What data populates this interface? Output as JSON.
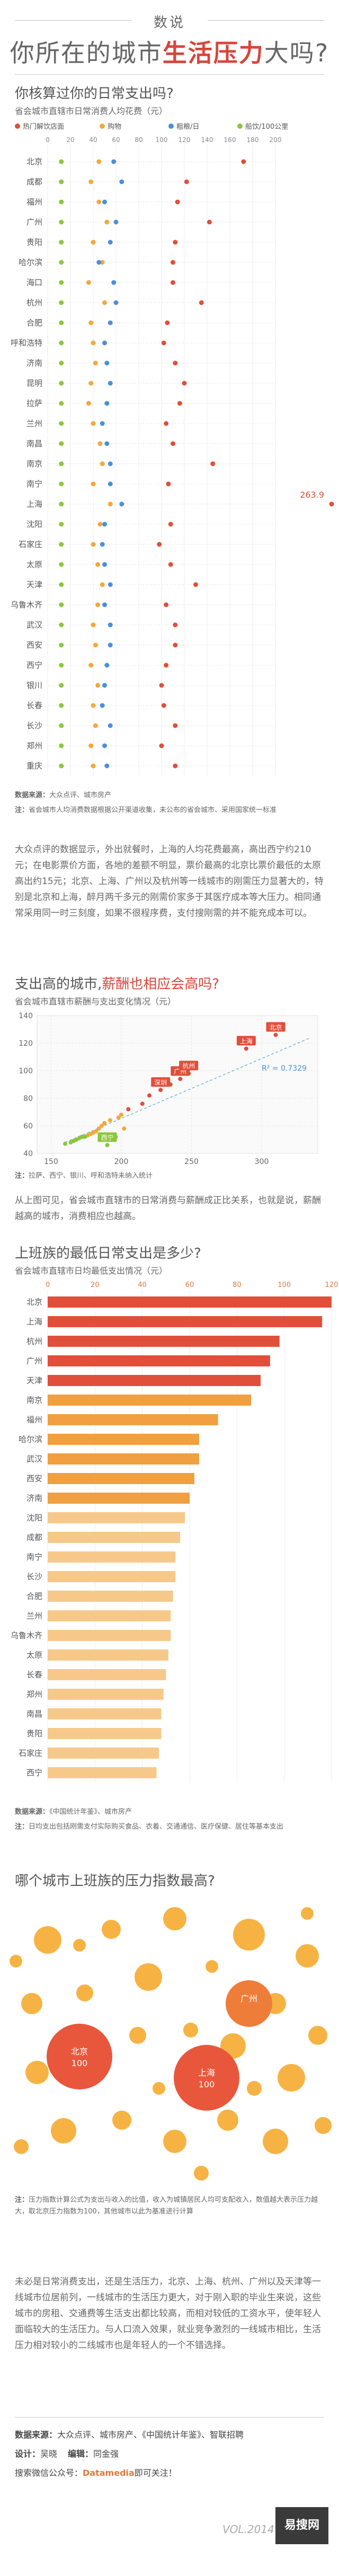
{
  "header": {
    "tag": "数说",
    "title_pre": "你所在的城市",
    "title_hl": "生活压力",
    "title_post": "大吗?"
  },
  "section1": {
    "title": "你核算过你的日常支出吗?",
    "subtitle": "省会城市直辖市日常消费人均花费（元）",
    "legend": [
      "热门解饮店面",
      "购物",
      "粗粮/日",
      "船饮/100公里"
    ],
    "source_label": "数据来源：",
    "source_text": "大众点评、城市房产",
    "note_label": "注：",
    "note_text": "省会城市人均消费数据根据公开渠道收集，未公布的省会城市、采用国家统一标准",
    "max_label": "263.9"
  },
  "chart_data": [
    {
      "type": "scatter",
      "title": "",
      "categories": [
        "北京",
        "成都",
        "福州",
        "广州",
        "贵阳",
        "哈尔滨",
        "海口",
        "杭州",
        "合肥",
        "呼和浩特",
        "济南",
        "昆明",
        "拉萨",
        "兰州",
        "南昌",
        "南京",
        "南宁",
        "上海",
        "沈阳",
        "石家庄",
        "太原",
        "天津",
        "乌鲁木齐",
        "武汉",
        "西安",
        "西宁",
        "银川",
        "长春",
        "长沙",
        "郑州",
        "重庆"
      ],
      "xlim": [
        0,
        280
      ],
      "xticks": [
        0,
        20,
        40,
        60,
        80,
        100,
        120,
        140,
        160,
        180,
        200
      ],
      "series": [
        {
          "name": "热门解饮店面",
          "color": "#e04f3a",
          "values": [
            172,
            122,
            114,
            142,
            112,
            110,
            110,
            135,
            105,
            102,
            112,
            120,
            116,
            104,
            110,
            145,
            106,
            263.9,
            108,
            98,
            108,
            130,
            104,
            112,
            112,
            104,
            100,
            102,
            112,
            100,
            112
          ]
        },
        {
          "name": "购物",
          "color": "#f4a83a",
          "values": [
            45,
            38,
            45,
            52,
            40,
            48,
            36,
            50,
            38,
            40,
            42,
            38,
            36,
            40,
            46,
            48,
            40,
            55,
            46,
            40,
            44,
            48,
            44,
            40,
            42,
            38,
            44,
            40,
            42,
            38,
            40
          ]
        },
        {
          "name": "粗粮/日",
          "color": "#4a90d9",
          "values": [
            58,
            65,
            50,
            60,
            55,
            45,
            58,
            60,
            55,
            50,
            52,
            55,
            52,
            48,
            52,
            55,
            55,
            65,
            50,
            48,
            50,
            55,
            50,
            55,
            55,
            52,
            50,
            48,
            55,
            50,
            52
          ]
        },
        {
          "name": "船饮/100公里",
          "color": "#8cc63e",
          "values": [
            12,
            12,
            12,
            12,
            12,
            12,
            12,
            12,
            12,
            12,
            12,
            12,
            12,
            12,
            12,
            12,
            12,
            12,
            12,
            12,
            12,
            12,
            12,
            12,
            12,
            12,
            12,
            12,
            12,
            12,
            12
          ]
        }
      ]
    },
    {
      "type": "scatter",
      "title": "",
      "xlim": [
        140,
        340
      ],
      "ylim": [
        40,
        140
      ],
      "xticks": [
        150,
        200,
        250,
        300
      ],
      "yticks": [
        40,
        60,
        80,
        100,
        120,
        140
      ],
      "r2": "R² = 0.7329",
      "labels": [
        {
          "name": "北京",
          "x": 310,
          "y": 126
        },
        {
          "name": "上海",
          "x": 289,
          "y": 116
        },
        {
          "name": "广州",
          "x": 242,
          "y": 94
        },
        {
          "name": "杭州",
          "x": 248,
          "y": 98
        },
        {
          "name": "深圳",
          "x": 228,
          "y": 86
        },
        {
          "name": "西宁",
          "x": 190,
          "y": 46
        }
      ],
      "points": [
        [
          310,
          126
        ],
        [
          289,
          116
        ],
        [
          248,
          98
        ],
        [
          242,
          94
        ],
        [
          228,
          86
        ],
        [
          235,
          90
        ],
        [
          220,
          82
        ],
        [
          215,
          76
        ],
        [
          205,
          72
        ],
        [
          200,
          68
        ],
        [
          198,
          66
        ],
        [
          192,
          64
        ],
        [
          188,
          62
        ],
        [
          186,
          60
        ],
        [
          184,
          58
        ],
        [
          182,
          56
        ],
        [
          180,
          55
        ],
        [
          178,
          54
        ],
        [
          176,
          53
        ],
        [
          174,
          52
        ],
        [
          172,
          52
        ],
        [
          170,
          51
        ],
        [
          168,
          50
        ],
        [
          166,
          49
        ],
        [
          164,
          48
        ],
        [
          160,
          47
        ],
        [
          190,
          46
        ],
        [
          194,
          50
        ],
        [
          196,
          52
        ],
        [
          202,
          58
        ]
      ]
    },
    {
      "type": "bar",
      "title": "",
      "xlim": [
        0,
        120
      ],
      "xticks": [
        0,
        20,
        40,
        60,
        80,
        100,
        120
      ],
      "categories": [
        "北京",
        "上海",
        "杭州",
        "广州",
        "天津",
        "南京",
        "福州",
        "哈尔滨",
        "武汉",
        "西安",
        "济南",
        "沈阳",
        "成都",
        "南宁",
        "长沙",
        "合肥",
        "兰州",
        "乌鲁木齐",
        "太原",
        "长春",
        "郑州",
        "南昌",
        "贵阳",
        "石家庄",
        "西宁"
      ],
      "values": [
        126,
        116,
        98,
        94,
        90,
        86,
        72,
        64,
        64,
        62,
        60,
        58,
        56,
        54,
        54,
        53,
        52,
        52,
        51,
        50,
        49,
        48,
        48,
        47,
        46
      ]
    }
  ],
  "section2": {
    "title_pre": "支出高的城市,",
    "title_hl": "薪酬也相应会高吗?",
    "subtitle": "省会城市直辖市薪酬与支出变化情况（元）",
    "note_label": "注：",
    "note_text": "拉萨、西宁、银川、呼和浩特未纳入统计",
    "para": "从上图可见，省会城市直辖市的日常消费与薪酬成正比关系，也就是说，薪酬越高的城市，消费相应也越高。"
  },
  "section1_para": "大众点评的数据显示，外出就餐时，上海的人均花费最高，高出西宁约210元；在电影票价方面，各地的差额不明显，票价最高的北京比票价最低的太原高出约15元；北京、上海、广州以及杭州等一线城市的刚需压力显著大的，特别是北京和上海，醉月两千多元的刚需价家多于其医疗成本等大压力。相同通常采用同一时三刻度，如果不很程序费，支付搜刚需的并不能充成本可以。",
  "section3": {
    "title": "上班族的最低日常支出是多少?",
    "subtitle": "省会城市直辖市日均最低支出情况（元）",
    "source_label": "数据来源：",
    "source_text": "《中国统计年鉴》、城市房产",
    "note_label": "注：",
    "note_text": "日均支出包括刚需支付实际购买食品、衣着、交通通信、医疗保健、居住等基本支出"
  },
  "section4": {
    "title": "哪个城市上班族的压力指数最高?",
    "bubbles": [
      {
        "name": "北京",
        "value": "100",
        "size": "big"
      },
      {
        "name": "上海",
        "value": "100",
        "size": "big"
      },
      {
        "name": "广州",
        "value": "",
        "size": "mid"
      }
    ],
    "note_label": "注：",
    "note_text": "压力指数计算公式为支出与收入的比值，收入为城镇居民人均可支配收入，数值越大表示压力越大，取北京压力指数为100，其他城市以此为基准进行计算"
  },
  "conclusion": "未必是日常消费支出，还是生活压力，北京、上海、杭州、广州以及天津等一线城市位居前列，一线城市的生活压力更大，对于刚入职的毕业生来说，这些城市的房租、交通费等生活支出都比较高，而相对较低的工资水平，使年轻人面临较大的生活压力。与人口流入效果，就业竞争激烈的一线城市相比，生活压力相对较小的二线城市也是年轻人的一个不错选择。",
  "footer": {
    "source_label": "数据来源：",
    "source_text": "大众点评、城市房产、《中国统计年鉴》、智联招聘",
    "design_label": "设计：",
    "design_text": "吴晓",
    "editor_label": "编辑：",
    "editor_text": "同金强",
    "scan_pre": "搜索微信公众号：",
    "scan_hl": "Datamedia",
    "scan_post": "即可关注！",
    "watermark": "VOL.2014",
    "logo": "易搜网"
  }
}
